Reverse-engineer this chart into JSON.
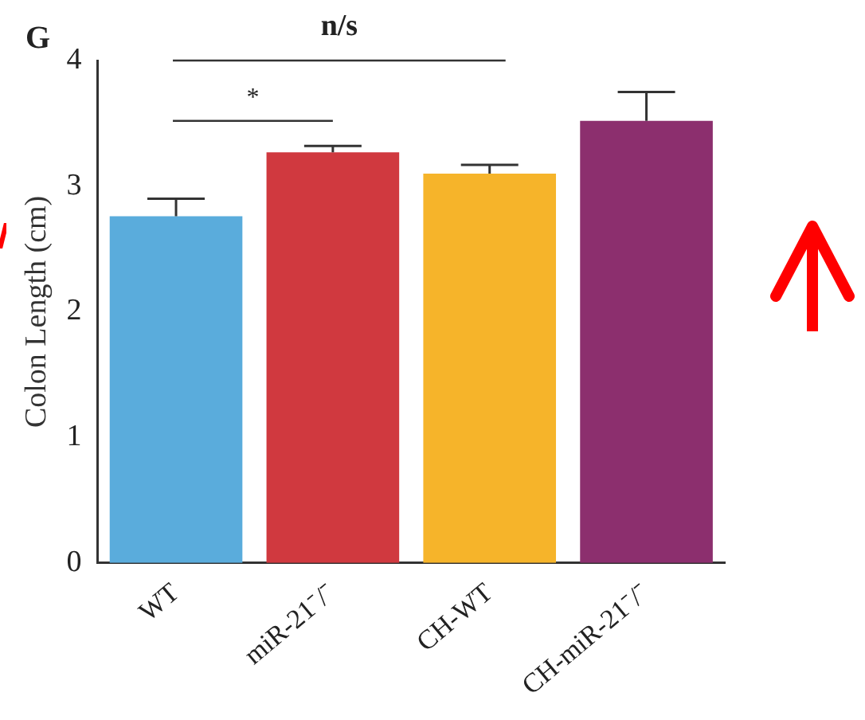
{
  "chart_data": {
    "type": "bar",
    "ylabel": "Colon Length (cm)",
    "categories": [
      "WT",
      "miR-21⁻/⁻",
      "CH-WT",
      "CH-miR-21⁻/⁻"
    ],
    "values": [
      2.76,
      3.27,
      3.1,
      3.52
    ],
    "colors": [
      "#5aacdc",
      "#d0393f",
      "#f6b42a",
      "#8c2f6e"
    ],
    "errors": [
      0.14,
      0.05,
      0.07,
      0.23
    ],
    "ylim": [
      0,
      4
    ],
    "yticks": [
      0,
      1,
      2,
      3,
      4
    ],
    "grid": false,
    "legend": false,
    "annotations": [
      "G",
      "*",
      "n/s"
    ]
  }
}
